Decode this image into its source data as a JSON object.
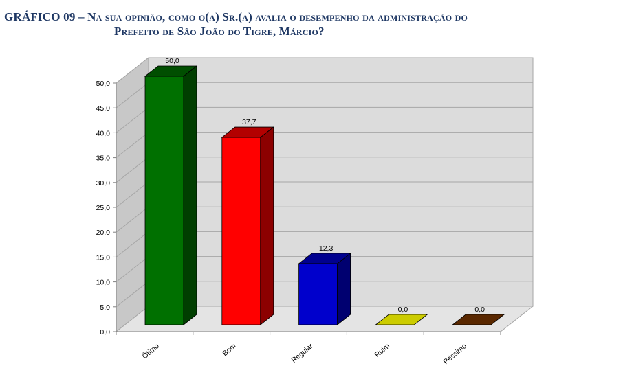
{
  "title": {
    "line1": "GRÁFICO 09 – Na sua opinião, como o(a) Sr.(a) avalia o desempenho da administração do",
    "line2": "Prefeito de São João do Tigre, Márcio?"
  },
  "chart_data": {
    "type": "bar",
    "title": "GRÁFICO 09 – Na sua opinião, como o(a) Sr.(a) avalia o desempenho da administração do Prefeito de São João do Tigre, Márcio?",
    "categories": [
      "Ótimo",
      "Bom",
      "Regular",
      "Ruim",
      "Péssimo"
    ],
    "values": [
      50.0,
      37.7,
      12.3,
      0.0,
      0.0
    ],
    "value_labels": [
      "50,0",
      "37,7",
      "12,3",
      "0,0",
      "0,0"
    ],
    "colors": [
      "#007000",
      "#ff0000",
      "#0000cc",
      "#cccc00",
      "#5a2800"
    ],
    "y_ticks": [
      "0,0",
      "5,0",
      "10,0",
      "15,0",
      "20,0",
      "25,0",
      "30,0",
      "35,0",
      "40,0",
      "45,0",
      "50,0"
    ],
    "ylim": [
      0,
      50
    ],
    "grid": true,
    "legend": "none",
    "style": "3d-column"
  }
}
